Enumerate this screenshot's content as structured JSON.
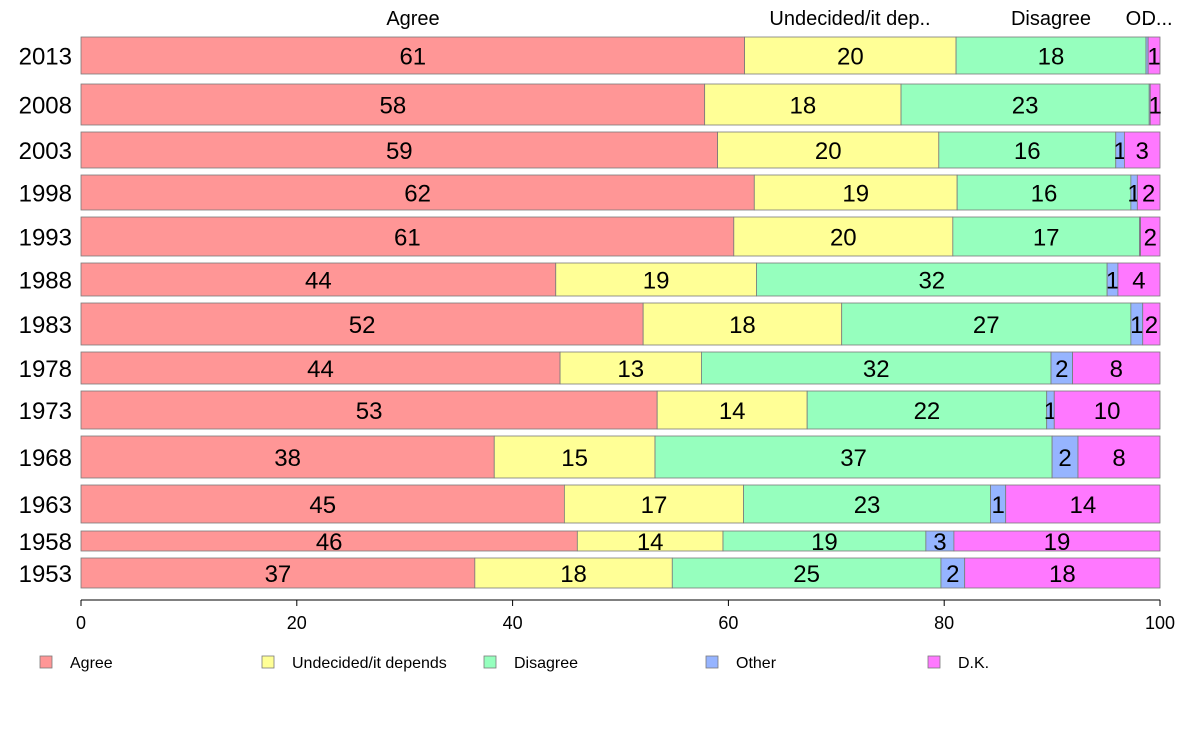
{
  "chart_data": {
    "type": "bar",
    "orientation": "horizontal",
    "stacked": true,
    "title": "",
    "xlabel": "",
    "ylabel": "",
    "xlim": [
      0,
      100
    ],
    "x_ticks": [
      "0",
      "20",
      "40",
      "60",
      "80",
      "100"
    ],
    "categories": [
      "2013",
      "2008",
      "2003",
      "1998",
      "1993",
      "1988",
      "1983",
      "1978",
      "1973",
      "1968",
      "1963",
      "1958",
      "1953"
    ],
    "column_headers": [
      "Agree",
      "Undecided/it dep..",
      "Disagree",
      "O..",
      "D..."
    ],
    "series": [
      {
        "name": "Agree",
        "color": "#ff9696",
        "values": [
          61.5,
          57.8,
          59.0,
          62.4,
          60.5,
          44.0,
          52.1,
          44.4,
          53.4,
          38.3,
          44.8,
          46.0,
          36.5
        ],
        "labels": [
          "61",
          "58",
          "59",
          "62",
          "61",
          "44",
          "52",
          "44",
          "53",
          "38",
          "45",
          "46",
          "37"
        ]
      },
      {
        "name": "Undecided/it depends",
        "color": "#ffff96",
        "values": [
          19.6,
          18.2,
          20.5,
          18.8,
          20.3,
          18.6,
          18.4,
          13.1,
          13.9,
          14.9,
          16.6,
          13.5,
          18.3
        ],
        "labels": [
          "20",
          "18",
          "20",
          "19",
          "20",
          "19",
          "18",
          "13",
          "14",
          "15",
          "17",
          "14",
          "18"
        ]
      },
      {
        "name": "Disagree",
        "color": "#96ffbe",
        "values": [
          17.6,
          23.0,
          16.4,
          16.1,
          17.3,
          32.5,
          26.8,
          32.4,
          22.2,
          36.8,
          22.9,
          18.8,
          24.9
        ],
        "labels": [
          "18",
          "23",
          "16",
          "16",
          "17",
          "32",
          "27",
          "32",
          "22",
          "37",
          "23",
          "19",
          "25"
        ]
      },
      {
        "name": "Other",
        "color": "#96b4ff",
        "values": [
          0.2,
          0.1,
          0.8,
          0.6,
          0.1,
          1.0,
          1.1,
          2.0,
          0.7,
          2.4,
          1.4,
          2.6,
          2.2
        ],
        "labels": [
          "",
          "",
          "1",
          "1",
          "",
          "1",
          "1",
          "2",
          "1",
          "2",
          "1",
          "3",
          "2"
        ]
      },
      {
        "name": "D.K.",
        "color": "#ff78ff",
        "values": [
          1.1,
          0.9,
          3.3,
          2.1,
          1.8,
          3.9,
          1.6,
          8.1,
          9.8,
          7.6,
          14.3,
          19.1,
          18.1
        ],
        "labels": [
          "1",
          "1",
          "3",
          "2",
          "2",
          "4",
          "2",
          "8",
          "10",
          "8",
          "14",
          "19",
          "18"
        ]
      }
    ],
    "legend": {
      "position": "bottom",
      "entries": [
        "Agree",
        "Undecided/it depends",
        "Disagree",
        "Other",
        "D.K."
      ]
    }
  }
}
